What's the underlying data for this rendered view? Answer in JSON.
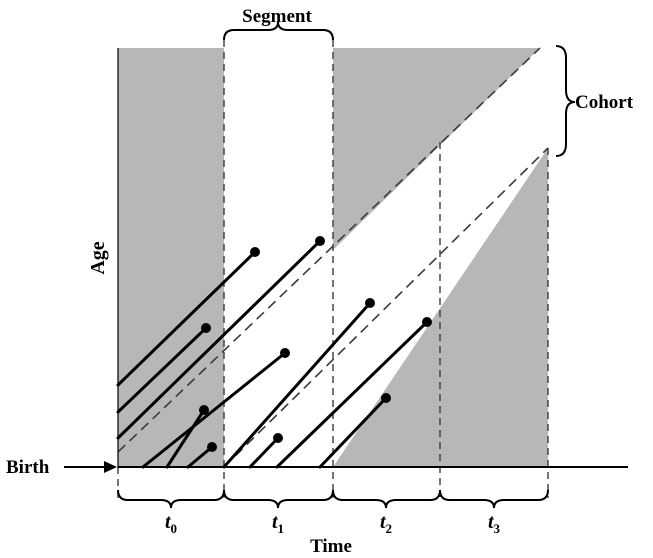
{
  "diagram": {
    "top_label": "Segment",
    "right_label": "Cohort",
    "y_axis_label": "Age",
    "birth_label": "Birth",
    "x_axis_label": "Time",
    "periods": [
      {
        "symbol": "t",
        "subscript": "0"
      },
      {
        "symbol": "t",
        "subscript": "1"
      },
      {
        "symbol": "t",
        "subscript": "2"
      },
      {
        "symbol": "t",
        "subscript": "3"
      }
    ],
    "colors": {
      "shade": "#b7b7b7",
      "ink": "#000000",
      "dash": "#3a3a3a",
      "background": "#ffffff"
    }
  }
}
